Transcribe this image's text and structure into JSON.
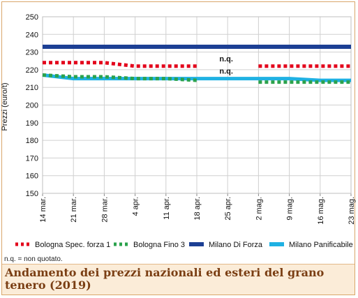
{
  "chart_data": {
    "type": "line",
    "ylabel": "Prezzi (euro/t)",
    "ylim": [
      150,
      250
    ],
    "yticks": [
      "150",
      "160",
      "170",
      "180",
      "190",
      "200",
      "210",
      "220",
      "230",
      "240",
      "250"
    ],
    "grid": true,
    "categories": [
      "14 mar.",
      "21 mar.",
      "28 mar.",
      "4 apr.",
      "11 apr.",
      "18 apr.",
      "25 apr.",
      "2 mag.",
      "9 mag.",
      "16 mag.",
      "23 mag."
    ],
    "series": [
      {
        "name": "Bologna Spec. forza 1",
        "color": "#e3001b",
        "style": "dotted",
        "values": [
          224,
          224,
          224,
          222,
          222,
          222,
          null,
          222,
          222,
          222,
          222
        ]
      },
      {
        "name": "Bologna Fino 3",
        "color": "#2ba24c",
        "style": "dotted",
        "values": [
          217,
          216,
          216,
          215,
          215,
          214,
          null,
          213,
          213,
          213,
          213
        ]
      },
      {
        "name": "Milano Di Forza",
        "color": "#1c3f94",
        "style": "solid",
        "values": [
          233,
          233,
          233,
          233,
          233,
          233,
          233,
          233,
          233,
          233,
          233
        ]
      },
      {
        "name": "Milano Panificabile",
        "color": "#1fb1e3",
        "style": "solid",
        "values": [
          217,
          215,
          215,
          215,
          215,
          215,
          215,
          215,
          215,
          214,
          214
        ]
      }
    ],
    "annotations": [
      {
        "text": "n.q.",
        "x": "25 apr.",
        "y": 224
      },
      {
        "text": "n.q.",
        "x": "25 apr.",
        "y": 217
      }
    ],
    "legend_position": "bottom"
  },
  "footnote": "n.q. = non quotato.",
  "caption": "Andamento dei prezzi nazionali ed esteri del grano tenero (2019)"
}
